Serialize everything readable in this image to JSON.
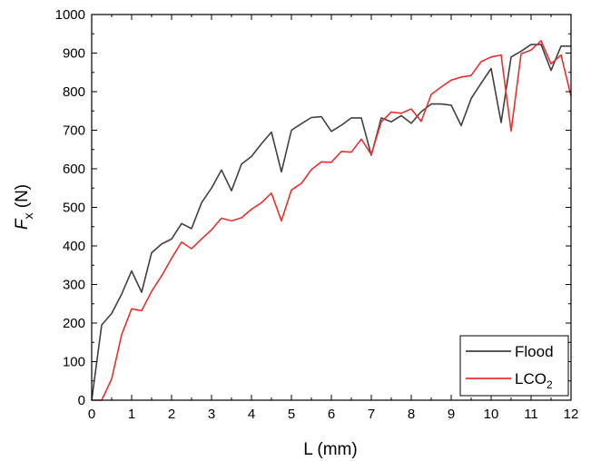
{
  "chart_data": {
    "type": "line",
    "xlabel": "L (mm)",
    "ylabel_main": "F",
    "ylabel_sub": "x",
    "ylabel_unit": " (N)",
    "xlim": [
      0,
      12
    ],
    "ylim": [
      0,
      1000
    ],
    "xticks": [
      0,
      1,
      2,
      3,
      4,
      5,
      6,
      7,
      8,
      9,
      10,
      11,
      12
    ],
    "yticks": [
      0,
      100,
      200,
      300,
      400,
      500,
      600,
      700,
      800,
      900,
      1000
    ],
    "grid": false,
    "legend_position": "bottom-right",
    "series": [
      {
        "name": "Flood",
        "legend_main": "Flood",
        "legend_sub": "",
        "color": "#404040",
        "points": [
          [
            0,
            0
          ],
          [
            0.25,
            195
          ],
          [
            0.5,
            225
          ],
          [
            0.75,
            275
          ],
          [
            1.0,
            335
          ],
          [
            1.25,
            280
          ],
          [
            1.5,
            382
          ],
          [
            1.75,
            405
          ],
          [
            2.0,
            418
          ],
          [
            2.25,
            458
          ],
          [
            2.5,
            445
          ],
          [
            2.75,
            512
          ],
          [
            3.0,
            550
          ],
          [
            3.25,
            597
          ],
          [
            3.5,
            543
          ],
          [
            3.75,
            612
          ],
          [
            4.0,
            632
          ],
          [
            4.25,
            665
          ],
          [
            4.5,
            695
          ],
          [
            4.75,
            592
          ],
          [
            5.0,
            700
          ],
          [
            5.25,
            717
          ],
          [
            5.5,
            733
          ],
          [
            5.75,
            735
          ],
          [
            6.0,
            697
          ],
          [
            6.25,
            713
          ],
          [
            6.5,
            732
          ],
          [
            6.75,
            732
          ],
          [
            7.0,
            635
          ],
          [
            7.25,
            732
          ],
          [
            7.5,
            722
          ],
          [
            7.75,
            738
          ],
          [
            8.0,
            718
          ],
          [
            8.25,
            748
          ],
          [
            8.5,
            768
          ],
          [
            8.75,
            768
          ],
          [
            9.0,
            765
          ],
          [
            9.25,
            712
          ],
          [
            9.5,
            782
          ],
          [
            9.75,
            822
          ],
          [
            10.0,
            860
          ],
          [
            10.25,
            720
          ],
          [
            10.5,
            890
          ],
          [
            10.75,
            905
          ],
          [
            11.0,
            922
          ],
          [
            11.25,
            922
          ],
          [
            11.5,
            855
          ],
          [
            11.75,
            918
          ],
          [
            12.0,
            918
          ]
        ]
      },
      {
        "name": "LCO2",
        "legend_main": "LCO",
        "legend_sub": "2",
        "color": "#e8302c",
        "points": [
          [
            0,
            0
          ],
          [
            0.25,
            0
          ],
          [
            0.5,
            55
          ],
          [
            0.75,
            170
          ],
          [
            1.0,
            237
          ],
          [
            1.25,
            232
          ],
          [
            1.5,
            282
          ],
          [
            1.75,
            322
          ],
          [
            2.0,
            368
          ],
          [
            2.25,
            410
          ],
          [
            2.5,
            393
          ],
          [
            2.75,
            418
          ],
          [
            3.0,
            442
          ],
          [
            3.25,
            472
          ],
          [
            3.5,
            465
          ],
          [
            3.75,
            473
          ],
          [
            4.0,
            495
          ],
          [
            4.25,
            512
          ],
          [
            4.5,
            537
          ],
          [
            4.75,
            465
          ],
          [
            5.0,
            545
          ],
          [
            5.25,
            562
          ],
          [
            5.5,
            598
          ],
          [
            5.75,
            618
          ],
          [
            6.0,
            617
          ],
          [
            6.25,
            645
          ],
          [
            6.5,
            643
          ],
          [
            6.75,
            677
          ],
          [
            7.0,
            637
          ],
          [
            7.25,
            722
          ],
          [
            7.5,
            747
          ],
          [
            7.75,
            744
          ],
          [
            8.0,
            755
          ],
          [
            8.25,
            723
          ],
          [
            8.5,
            793
          ],
          [
            8.75,
            812
          ],
          [
            9.0,
            830
          ],
          [
            9.25,
            838
          ],
          [
            9.5,
            842
          ],
          [
            9.75,
            878
          ],
          [
            10.0,
            890
          ],
          [
            10.25,
            895
          ],
          [
            10.5,
            698
          ],
          [
            10.75,
            898
          ],
          [
            11.0,
            908
          ],
          [
            11.25,
            932
          ],
          [
            11.5,
            872
          ],
          [
            11.75,
            895
          ],
          [
            12.0,
            788
          ]
        ]
      }
    ]
  }
}
